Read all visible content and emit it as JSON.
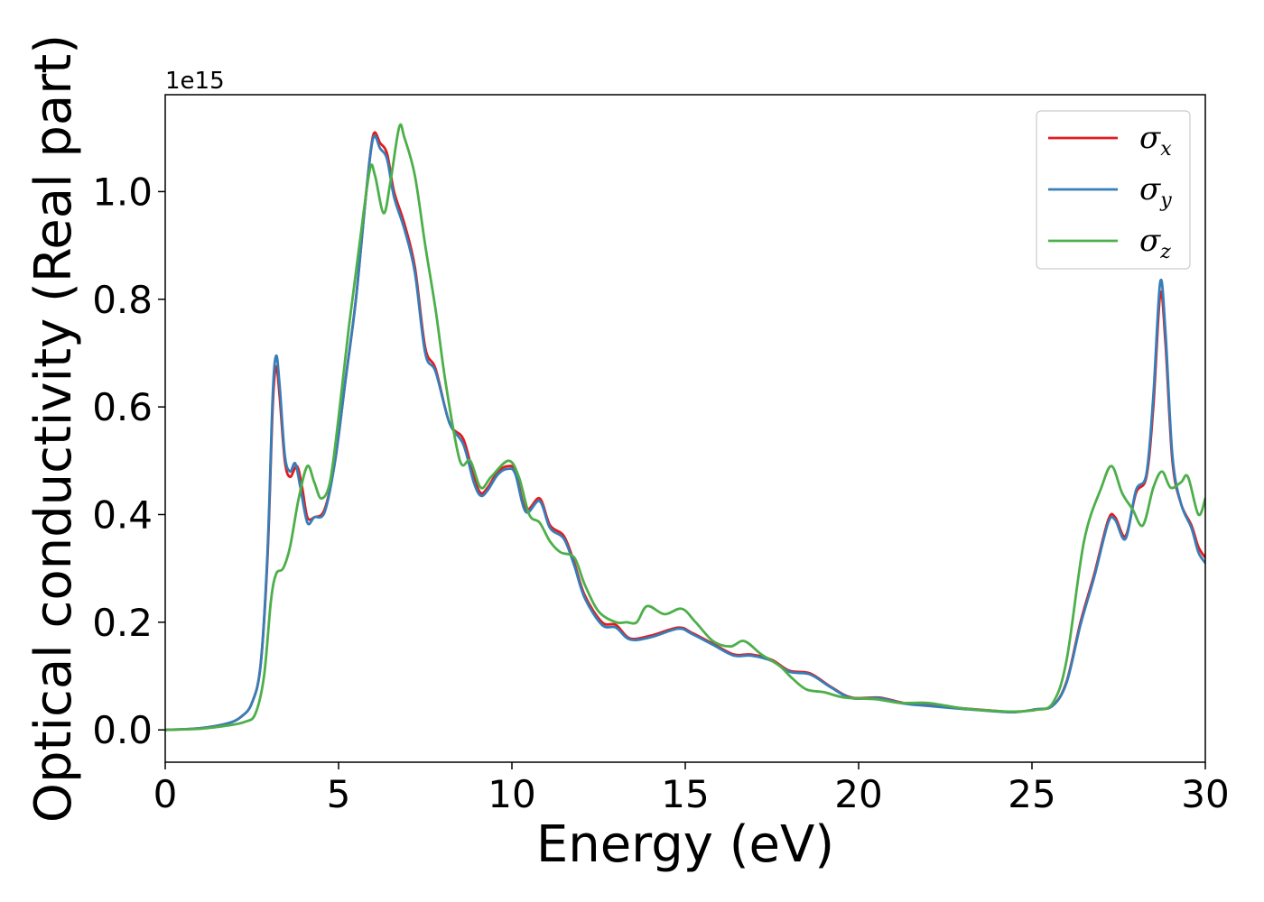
{
  "chart_data": {
    "type": "line",
    "title": "",
    "xlabel": "Energy (eV)",
    "ylabel": "Optical conductivity (Real part)",
    "y_offset_text": "1e15",
    "xlim": [
      0,
      30
    ],
    "ylim": [
      -0.06,
      1.18
    ],
    "xticks": [
      0,
      5,
      10,
      15,
      20,
      25,
      30
    ],
    "xtick_labels": [
      "0",
      "5",
      "10",
      "15",
      "20",
      "25",
      "30"
    ],
    "yticks": [
      0.0,
      0.2,
      0.4,
      0.6,
      0.8,
      1.0
    ],
    "ytick_labels": [
      "0.0",
      "0.2",
      "0.4",
      "0.6",
      "0.8",
      "1.0"
    ],
    "grid": false,
    "legend_position": "top-right",
    "series": [
      {
        "name": "σx",
        "symbol": "σ",
        "subscript": "x",
        "color": "#e41a1c",
        "points": [
          [
            0,
            0
          ],
          [
            1,
            0.003
          ],
          [
            1.8,
            0.012
          ],
          [
            2.2,
            0.025
          ],
          [
            2.5,
            0.05
          ],
          [
            2.75,
            0.12
          ],
          [
            2.95,
            0.32
          ],
          [
            3.1,
            0.6
          ],
          [
            3.2,
            0.675
          ],
          [
            3.3,
            0.62
          ],
          [
            3.45,
            0.5
          ],
          [
            3.6,
            0.47
          ],
          [
            3.8,
            0.49
          ],
          [
            3.95,
            0.45
          ],
          [
            4.1,
            0.395
          ],
          [
            4.3,
            0.395
          ],
          [
            4.6,
            0.41
          ],
          [
            4.9,
            0.5
          ],
          [
            5.2,
            0.65
          ],
          [
            5.5,
            0.8
          ],
          [
            5.8,
            1.0
          ],
          [
            6.0,
            1.105
          ],
          [
            6.2,
            1.09
          ],
          [
            6.4,
            1.07
          ],
          [
            6.6,
            1.0
          ],
          [
            6.9,
            0.94
          ],
          [
            7.2,
            0.86
          ],
          [
            7.5,
            0.71
          ],
          [
            7.8,
            0.67
          ],
          [
            8.2,
            0.57
          ],
          [
            8.6,
            0.54
          ],
          [
            8.9,
            0.47
          ],
          [
            9.1,
            0.44
          ],
          [
            9.3,
            0.45
          ],
          [
            9.6,
            0.48
          ],
          [
            9.9,
            0.49
          ],
          [
            10.1,
            0.48
          ],
          [
            10.4,
            0.41
          ],
          [
            10.8,
            0.43
          ],
          [
            11.1,
            0.38
          ],
          [
            11.5,
            0.36
          ],
          [
            11.8,
            0.31
          ],
          [
            12.1,
            0.25
          ],
          [
            12.6,
            0.2
          ],
          [
            13.0,
            0.195
          ],
          [
            13.4,
            0.17
          ],
          [
            14.0,
            0.175
          ],
          [
            14.8,
            0.19
          ],
          [
            15.2,
            0.18
          ],
          [
            15.8,
            0.16
          ],
          [
            16.4,
            0.14
          ],
          [
            16.9,
            0.14
          ],
          [
            17.5,
            0.13
          ],
          [
            18.0,
            0.11
          ],
          [
            18.6,
            0.105
          ],
          [
            19.2,
            0.08
          ],
          [
            19.8,
            0.06
          ],
          [
            20.6,
            0.06
          ],
          [
            21.3,
            0.05
          ],
          [
            22.1,
            0.045
          ],
          [
            23.0,
            0.04
          ],
          [
            24.0,
            0.035
          ],
          [
            24.5,
            0.033
          ],
          [
            25.1,
            0.038
          ],
          [
            25.6,
            0.045
          ],
          [
            26.0,
            0.09
          ],
          [
            26.4,
            0.2
          ],
          [
            26.8,
            0.29
          ],
          [
            27.2,
            0.39
          ],
          [
            27.4,
            0.395
          ],
          [
            27.7,
            0.36
          ],
          [
            28.0,
            0.44
          ],
          [
            28.3,
            0.47
          ],
          [
            28.5,
            0.6
          ],
          [
            28.7,
            0.81
          ],
          [
            28.85,
            0.72
          ],
          [
            29.05,
            0.5
          ],
          [
            29.3,
            0.42
          ],
          [
            29.6,
            0.38
          ],
          [
            29.8,
            0.34
          ],
          [
            30,
            0.32
          ]
        ]
      },
      {
        "name": "σy",
        "symbol": "σ",
        "subscript": "y",
        "color": "#377eb8",
        "points": [
          [
            0,
            0
          ],
          [
            1,
            0.003
          ],
          [
            1.8,
            0.012
          ],
          [
            2.2,
            0.025
          ],
          [
            2.5,
            0.05
          ],
          [
            2.75,
            0.12
          ],
          [
            2.95,
            0.33
          ],
          [
            3.1,
            0.62
          ],
          [
            3.2,
            0.695
          ],
          [
            3.3,
            0.64
          ],
          [
            3.45,
            0.51
          ],
          [
            3.6,
            0.48
          ],
          [
            3.75,
            0.495
          ],
          [
            3.9,
            0.45
          ],
          [
            4.1,
            0.385
          ],
          [
            4.3,
            0.395
          ],
          [
            4.6,
            0.405
          ],
          [
            4.9,
            0.5
          ],
          [
            5.2,
            0.65
          ],
          [
            5.5,
            0.8
          ],
          [
            5.8,
            1.0
          ],
          [
            6.0,
            1.1
          ],
          [
            6.2,
            1.08
          ],
          [
            6.4,
            1.06
          ],
          [
            6.6,
            0.99
          ],
          [
            6.9,
            0.93
          ],
          [
            7.2,
            0.85
          ],
          [
            7.5,
            0.7
          ],
          [
            7.8,
            0.665
          ],
          [
            8.2,
            0.57
          ],
          [
            8.6,
            0.53
          ],
          [
            8.9,
            0.46
          ],
          [
            9.1,
            0.435
          ],
          [
            9.3,
            0.445
          ],
          [
            9.6,
            0.475
          ],
          [
            9.9,
            0.485
          ],
          [
            10.1,
            0.475
          ],
          [
            10.4,
            0.405
          ],
          [
            10.8,
            0.425
          ],
          [
            11.1,
            0.375
          ],
          [
            11.5,
            0.355
          ],
          [
            11.8,
            0.305
          ],
          [
            12.1,
            0.245
          ],
          [
            12.6,
            0.195
          ],
          [
            13.0,
            0.19
          ],
          [
            13.4,
            0.168
          ],
          [
            14.0,
            0.172
          ],
          [
            14.8,
            0.188
          ],
          [
            15.2,
            0.178
          ],
          [
            15.8,
            0.158
          ],
          [
            16.4,
            0.138
          ],
          [
            16.9,
            0.138
          ],
          [
            17.5,
            0.128
          ],
          [
            18.0,
            0.108
          ],
          [
            18.6,
            0.103
          ],
          [
            19.2,
            0.079
          ],
          [
            19.8,
            0.059
          ],
          [
            20.6,
            0.059
          ],
          [
            21.3,
            0.049
          ],
          [
            22.1,
            0.044
          ],
          [
            23.0,
            0.039
          ],
          [
            24.0,
            0.034
          ],
          [
            24.5,
            0.033
          ],
          [
            25.1,
            0.038
          ],
          [
            25.6,
            0.045
          ],
          [
            26.0,
            0.088
          ],
          [
            26.4,
            0.195
          ],
          [
            26.8,
            0.285
          ],
          [
            27.2,
            0.385
          ],
          [
            27.4,
            0.39
          ],
          [
            27.7,
            0.355
          ],
          [
            28.0,
            0.445
          ],
          [
            28.3,
            0.475
          ],
          [
            28.5,
            0.62
          ],
          [
            28.7,
            0.832
          ],
          [
            28.85,
            0.74
          ],
          [
            29.05,
            0.51
          ],
          [
            29.3,
            0.42
          ],
          [
            29.6,
            0.375
          ],
          [
            29.8,
            0.33
          ],
          [
            30,
            0.31
          ]
        ]
      },
      {
        "name": "σz",
        "symbol": "σ",
        "subscript": "z",
        "color": "#4daf4a",
        "points": [
          [
            0,
            0
          ],
          [
            1,
            0.002
          ],
          [
            1.8,
            0.008
          ],
          [
            2.3,
            0.015
          ],
          [
            2.6,
            0.03
          ],
          [
            2.85,
            0.1
          ],
          [
            3.05,
            0.24
          ],
          [
            3.2,
            0.29
          ],
          [
            3.4,
            0.3
          ],
          [
            3.6,
            0.34
          ],
          [
            3.85,
            0.43
          ],
          [
            4.1,
            0.49
          ],
          [
            4.3,
            0.46
          ],
          [
            4.5,
            0.43
          ],
          [
            4.75,
            0.46
          ],
          [
            5.0,
            0.58
          ],
          [
            5.3,
            0.75
          ],
          [
            5.6,
            0.9
          ],
          [
            5.9,
            1.04
          ],
          [
            6.05,
            1.03
          ],
          [
            6.3,
            0.96
          ],
          [
            6.5,
            1.02
          ],
          [
            6.75,
            1.12
          ],
          [
            6.9,
            1.1
          ],
          [
            7.2,
            1.03
          ],
          [
            7.5,
            0.9
          ],
          [
            7.8,
            0.78
          ],
          [
            8.1,
            0.64
          ],
          [
            8.5,
            0.5
          ],
          [
            8.8,
            0.5
          ],
          [
            9.1,
            0.45
          ],
          [
            9.4,
            0.47
          ],
          [
            9.9,
            0.5
          ],
          [
            10.2,
            0.47
          ],
          [
            10.5,
            0.4
          ],
          [
            10.8,
            0.385
          ],
          [
            11.1,
            0.35
          ],
          [
            11.4,
            0.33
          ],
          [
            11.8,
            0.32
          ],
          [
            12.1,
            0.27
          ],
          [
            12.5,
            0.22
          ],
          [
            13.0,
            0.2
          ],
          [
            13.3,
            0.2
          ],
          [
            13.6,
            0.2
          ],
          [
            13.9,
            0.23
          ],
          [
            14.4,
            0.215
          ],
          [
            14.9,
            0.225
          ],
          [
            15.3,
            0.2
          ],
          [
            15.8,
            0.165
          ],
          [
            16.3,
            0.155
          ],
          [
            16.7,
            0.165
          ],
          [
            17.2,
            0.14
          ],
          [
            17.7,
            0.12
          ],
          [
            18.1,
            0.095
          ],
          [
            18.5,
            0.075
          ],
          [
            19.0,
            0.07
          ],
          [
            19.6,
            0.06
          ],
          [
            20.5,
            0.057
          ],
          [
            21.2,
            0.05
          ],
          [
            22.0,
            0.05
          ],
          [
            23.0,
            0.04
          ],
          [
            24.0,
            0.035
          ],
          [
            24.5,
            0.034
          ],
          [
            25.1,
            0.037
          ],
          [
            25.6,
            0.05
          ],
          [
            26.0,
            0.13
          ],
          [
            26.5,
            0.35
          ],
          [
            27.0,
            0.45
          ],
          [
            27.3,
            0.49
          ],
          [
            27.6,
            0.44
          ],
          [
            27.9,
            0.41
          ],
          [
            28.2,
            0.38
          ],
          [
            28.5,
            0.45
          ],
          [
            28.75,
            0.48
          ],
          [
            29.0,
            0.45
          ],
          [
            29.3,
            0.46
          ],
          [
            29.5,
            0.47
          ],
          [
            29.8,
            0.4
          ],
          [
            30,
            0.43
          ]
        ]
      }
    ]
  }
}
